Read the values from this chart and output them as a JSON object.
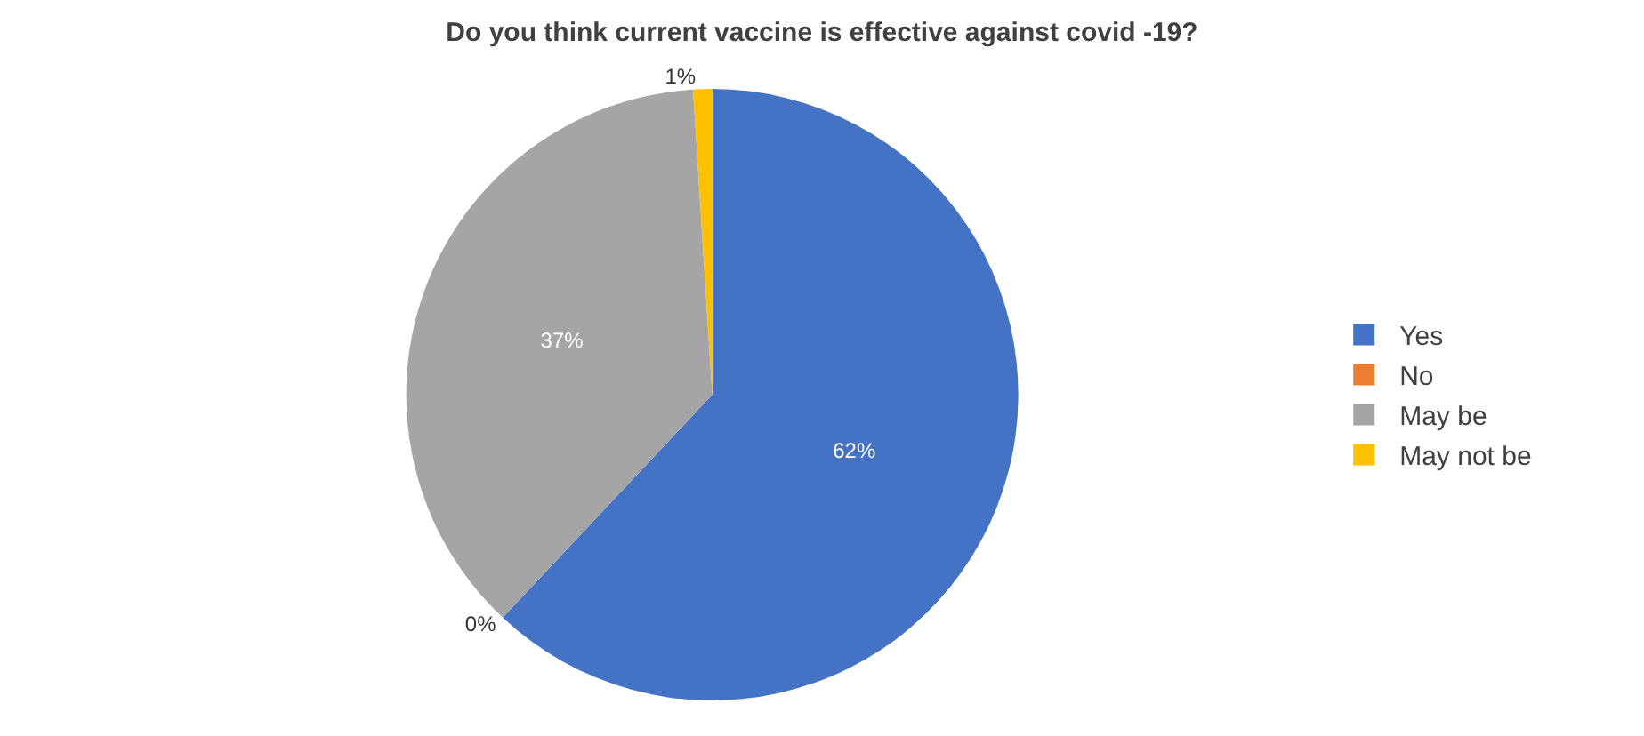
{
  "chart_data": {
    "type": "pie",
    "title": "Do you think current vaccine is effective against covid -19?",
    "categories": [
      "Yes",
      "No",
      "May be",
      "May not be"
    ],
    "values": [
      62,
      0,
      37,
      1
    ],
    "colors": [
      "#4472c4",
      "#ed7d31",
      "#a5a5a5",
      "#ffc000"
    ],
    "value_labels": [
      "62%",
      "0%",
      "37%",
      "1%"
    ],
    "legend": "right"
  }
}
